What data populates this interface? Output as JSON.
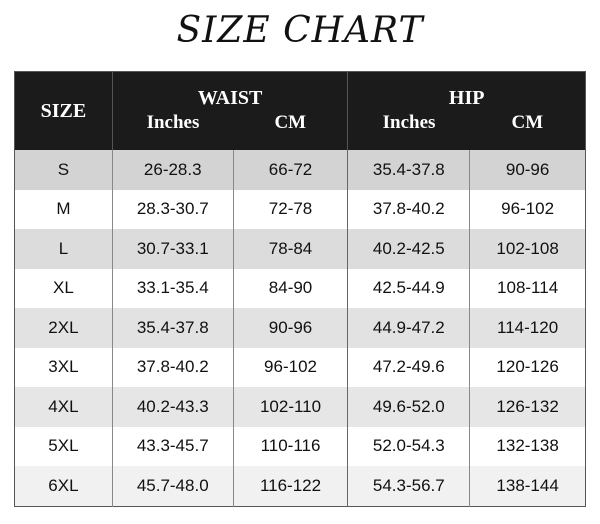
{
  "title": "SIZE CHART",
  "header": {
    "size": "SIZE",
    "groups": [
      "WAIST",
      "HIP"
    ],
    "units": [
      "Inches",
      "CM",
      "Inches",
      "CM"
    ]
  },
  "rows": [
    [
      "S",
      "26-28.3",
      "66-72",
      "35.4-37.8",
      "90-96"
    ],
    [
      "M",
      "28.3-30.7",
      "72-78",
      "37.8-40.2",
      "96-102"
    ],
    [
      "L",
      "30.7-33.1",
      "78-84",
      "40.2-42.5",
      "102-108"
    ],
    [
      "XL",
      "33.1-35.4",
      "84-90",
      "42.5-44.9",
      "108-114"
    ],
    [
      "2XL",
      "35.4-37.8",
      "90-96",
      "44.9-47.2",
      "114-120"
    ],
    [
      "3XL",
      "37.8-40.2",
      "96-102",
      "47.2-49.6",
      "120-126"
    ],
    [
      "4XL",
      "40.2-43.3",
      "102-110",
      "49.6-52.0",
      "126-132"
    ],
    [
      "5XL",
      "43.3-45.7",
      "110-116",
      "52.0-54.3",
      "132-138"
    ],
    [
      "6XL",
      "45.7-48.0",
      "116-122",
      "54.3-56.7",
      "138-144"
    ]
  ]
}
